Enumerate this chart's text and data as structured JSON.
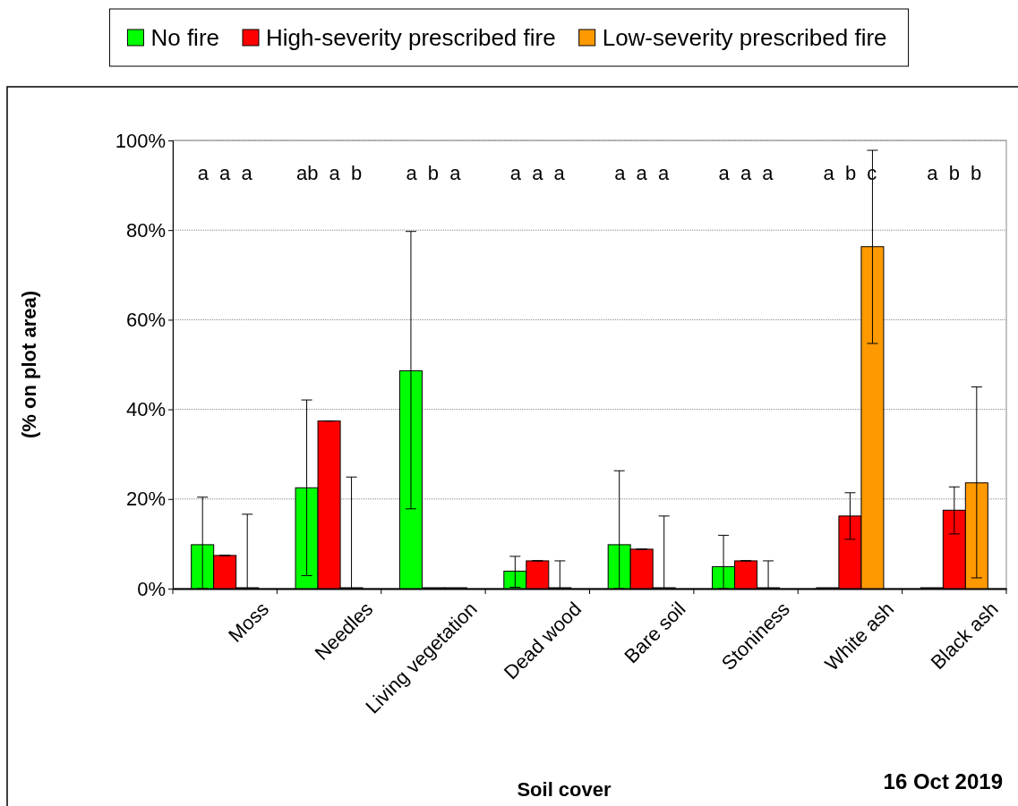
{
  "chart_data": {
    "type": "bar",
    "xlabel": "Soil cover",
    "ylabel": "(% on plot area)",
    "categories": [
      "Moss",
      "Needles",
      "Living vegetation",
      "Dead wood",
      "Bare soil",
      "Stoniness",
      "White ash",
      "Black ash"
    ],
    "series": [
      {
        "name": "No fire",
        "color": "#00ff00",
        "values": [
          9.8,
          22.5,
          48.6,
          3.9,
          9.8,
          4.9,
          0,
          0
        ],
        "errors": [
          [
            0,
            20.4
          ],
          [
            2.9,
            42.1
          ],
          [
            17.8,
            79.7
          ],
          [
            0.3,
            7.2
          ],
          [
            0,
            26.3
          ],
          [
            0,
            11.9
          ],
          null,
          null
        ]
      },
      {
        "name": "High-severity prescribed fire",
        "color": "#ff0000",
        "values": [
          7.4,
          37.4,
          0,
          6.2,
          8.8,
          6.2,
          16.2,
          17.5
        ],
        "errors": [
          [
            7.4,
            7.4
          ],
          [
            37.4,
            37.4
          ],
          null,
          [
            6.2,
            6.2
          ],
          [
            8.8,
            8.8
          ],
          [
            6.2,
            6.2
          ],
          [
            11.0,
            21.4
          ],
          [
            12.2,
            22.7
          ]
        ]
      },
      {
        "name": "Low-severity prescribed fire",
        "color": "#ff9900",
        "values": [
          0,
          0,
          0,
          0,
          0,
          0,
          76.3,
          23.6
        ],
        "errors": [
          [
            0,
            16.6
          ],
          [
            0,
            24.9
          ],
          null,
          [
            0,
            6.2
          ],
          [
            0,
            16.2
          ],
          [
            0,
            6.2
          ],
          [
            54.7,
            97.8
          ],
          [
            2.4,
            45.0
          ]
        ]
      }
    ],
    "ylim": [
      0,
      100
    ],
    "yticks": [
      {
        "value": 0,
        "label": "0%"
      },
      {
        "value": 20,
        "label": "20%"
      },
      {
        "value": 40,
        "label": "40%"
      },
      {
        "value": 60,
        "label": "60%"
      },
      {
        "value": 80,
        "label": "80%"
      },
      {
        "value": 100,
        "label": "100%"
      }
    ],
    "grid": "y",
    "legend": "top",
    "annotations": [
      "a a a",
      "ab a b",
      "a b a",
      "a a a",
      "a a a",
      "a a a",
      "a b c",
      "a b b",
      "16 Oct 2019"
    ]
  }
}
